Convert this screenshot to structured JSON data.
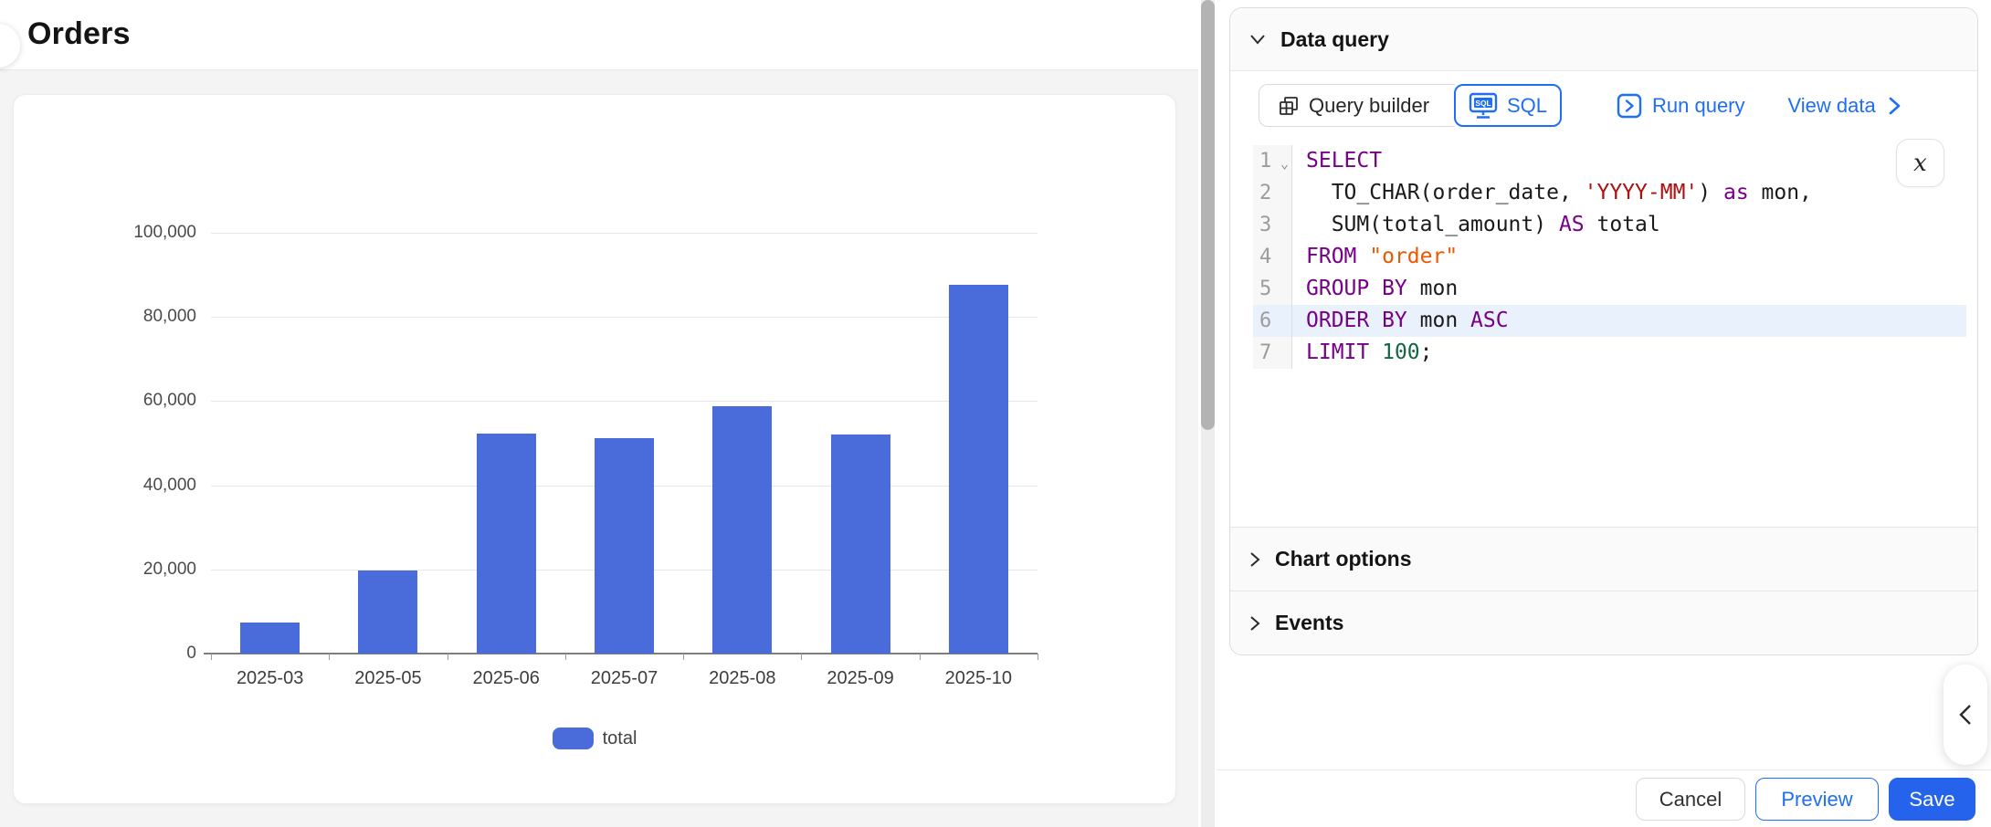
{
  "header": {
    "title": "Orders"
  },
  "colors": {
    "accent_blue": "#1e6ef6",
    "save_blue": "#2563ec",
    "bar_blue": "#4a6cdb",
    "active_line_bg": "#e9f2fc",
    "keyword_purple": "#770088",
    "string_red": "#aa1111",
    "identifier_orange": "#ee5500",
    "number_green": "#116644"
  },
  "chart_data": {
    "type": "bar",
    "categories": [
      "2025-03",
      "2025-05",
      "2025-06",
      "2025-07",
      "2025-08",
      "2025-09",
      "2025-10"
    ],
    "series": [
      {
        "name": "total",
        "values": [
          7400,
          19700,
          52300,
          51300,
          58800,
          52000,
          87700
        ]
      }
    ],
    "xlabel": "",
    "ylabel": "",
    "ylim": [
      0,
      100000
    ],
    "yticks": [
      0,
      20000,
      40000,
      60000,
      80000,
      100000
    ],
    "ytick_labels": [
      "0",
      "20,000",
      "40,000",
      "60,000",
      "80,000",
      "100,000"
    ],
    "grid": true,
    "legend": [
      "total"
    ],
    "legend_position": "bottom",
    "bar_color": "#4a6cdb"
  },
  "query_panel": {
    "title": "Data query",
    "tabs": [
      {
        "label": "Query builder",
        "icon": "table-icon",
        "active": false
      },
      {
        "label": "SQL",
        "icon": "sql-monitor-icon",
        "active": true
      }
    ],
    "run_query_label": "Run query",
    "view_data_label": "View data",
    "variable_chip": "x",
    "sql": {
      "active_line": 6,
      "lines": [
        {
          "n": "1",
          "fold": true,
          "tokens": [
            {
              "t": "SELECT",
              "c": "kw"
            }
          ]
        },
        {
          "n": "2",
          "tokens": [
            {
              "t": "  TO_CHAR(order_date, "
            },
            {
              "t": "'YYYY-MM'",
              "c": "str"
            },
            {
              "t": ") "
            },
            {
              "t": "as",
              "c": "kw"
            },
            {
              "t": " mon,"
            }
          ]
        },
        {
          "n": "3",
          "tokens": [
            {
              "t": "  SUM(total_amount) "
            },
            {
              "t": "AS",
              "c": "kw"
            },
            {
              "t": " total"
            }
          ]
        },
        {
          "n": "4",
          "tokens": [
            {
              "t": "FROM",
              "c": "kw"
            },
            {
              "t": " "
            },
            {
              "t": "\"order\"",
              "c": "str2"
            }
          ]
        },
        {
          "n": "5",
          "tokens": [
            {
              "t": "GROUP BY",
              "c": "kw"
            },
            {
              "t": " mon"
            }
          ]
        },
        {
          "n": "6",
          "tokens": [
            {
              "t": "ORDER BY",
              "c": "kw"
            },
            {
              "t": " mon "
            },
            {
              "t": "ASC",
              "c": "kw"
            }
          ]
        },
        {
          "n": "7",
          "tokens": [
            {
              "t": "LIMIT",
              "c": "kw"
            },
            {
              "t": " "
            },
            {
              "t": "100",
              "c": "num"
            },
            {
              "t": ";"
            }
          ]
        }
      ]
    },
    "sections": [
      {
        "label": "Chart options"
      },
      {
        "label": "Events"
      }
    ]
  },
  "footer": {
    "cancel_label": "Cancel",
    "preview_label": "Preview",
    "save_label": "Save"
  }
}
